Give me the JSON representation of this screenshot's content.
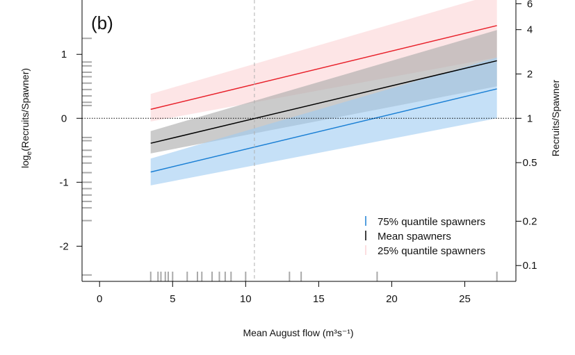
{
  "chart_data": {
    "type": "line",
    "panel_label": "(b)",
    "xlabel": "Mean August flow",
    "xlabel_unit": "(m³s⁻¹)",
    "ylabel_left": "log",
    "ylabel_left_sub": "e",
    "ylabel_left_rest": "(Recruits/Spawner)",
    "ylabel_right": "Recruits/Spawner",
    "xlim": [
      -1.2,
      28.5
    ],
    "ylim": [
      -2.55,
      1.85
    ],
    "x_ticks": [
      0,
      5,
      10,
      15,
      20,
      25
    ],
    "y_ticks": [
      -2,
      -1,
      0,
      1
    ],
    "right_ticks": [
      {
        "label": "0.1",
        "value": 0.1
      },
      {
        "label": "0.2",
        "value": 0.2
      },
      {
        "label": "0.5",
        "value": 0.5
      },
      {
        "label": "1",
        "value": 1
      },
      {
        "label": "2",
        "value": 2
      },
      {
        "label": "4",
        "value": 4
      },
      {
        "label": "6",
        "value": 6
      }
    ],
    "reference_hline_y": 0,
    "reference_vline_x": 10.6,
    "series": [
      {
        "name": "25% quantile spawners",
        "color": "#e8202a",
        "band_color": "#fbd3d6",
        "x": [
          3.5,
          27.2
        ],
        "y": [
          0.14,
          1.45
        ],
        "lower": [
          -0.05,
          0.95
        ],
        "upper": [
          0.38,
          1.95
        ]
      },
      {
        "name": "Mean spawners",
        "color": "#000000",
        "band_color": "#a8a8a8",
        "x": [
          3.5,
          27.2
        ],
        "y": [
          -0.39,
          0.9
        ],
        "lower": [
          -0.55,
          0.5
        ],
        "upper": [
          -0.2,
          1.38
        ]
      },
      {
        "name": "75% quantile spawners",
        "color": "#1a7fd4",
        "band_color": "#9fcbf2",
        "x": [
          3.5,
          27.2
        ],
        "y": [
          -0.84,
          0.46
        ],
        "lower": [
          -1.05,
          0.0
        ],
        "upper": [
          -0.63,
          0.95
        ]
      }
    ],
    "rug_x": [
      3.5,
      4.0,
      4.2,
      4.5,
      4.7,
      5.0,
      6.0,
      6.7,
      7.0,
      7.7,
      8.2,
      8.6,
      9.0,
      10.0,
      13.0,
      13.8,
      19.0,
      27.2
    ],
    "rug_y": [
      -2.45,
      -1.6,
      -1.4,
      -1.3,
      -1.2,
      -1.1,
      -1.0,
      -0.85,
      -0.7,
      -0.6,
      -0.5,
      -0.35,
      -0.3,
      0.2,
      0.25,
      0.35,
      0.45,
      0.55,
      0.65,
      0.72,
      0.82,
      0.88,
      1.25
    ],
    "legend_position": "bottom-right",
    "grid": false
  }
}
